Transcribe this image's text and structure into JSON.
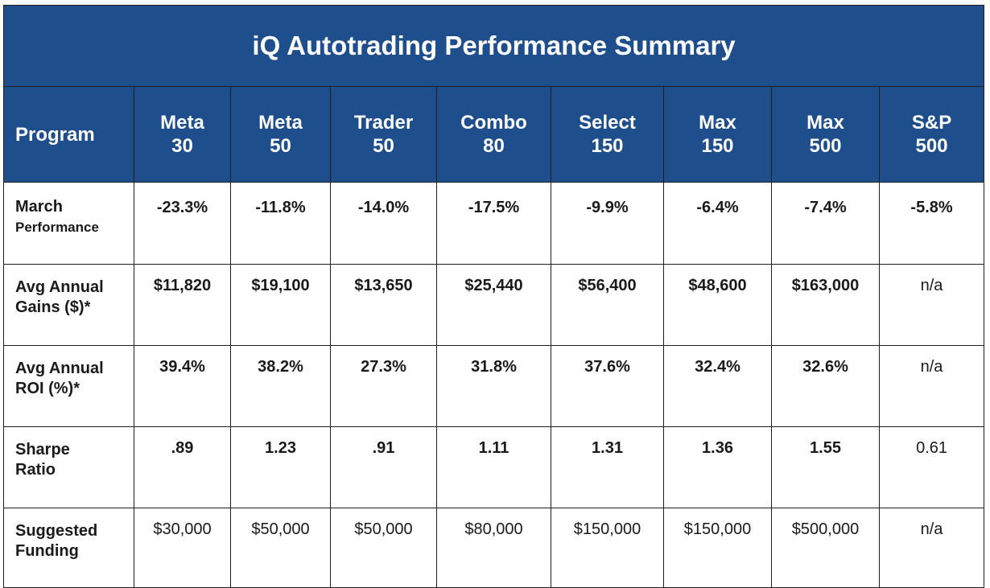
{
  "title": "iQ Autotrading Performance Summary",
  "header": {
    "program_label": "Program",
    "columns": [
      {
        "line1": "Meta",
        "line2": "30"
      },
      {
        "line1": "Meta",
        "line2": "50"
      },
      {
        "line1": "Trader",
        "line2": "50"
      },
      {
        "line1": "Combo",
        "line2": "80"
      },
      {
        "line1": "Select",
        "line2": "150"
      },
      {
        "line1": "Max",
        "line2": "150"
      },
      {
        "line1": "Max",
        "line2": "500"
      },
      {
        "line1": "S&P",
        "line2": "500"
      }
    ]
  },
  "rows": [
    {
      "label_line1": "March",
      "label_line2": "Performance",
      "values": [
        "-23.3%",
        "-11.8%",
        "-14.0%",
        "-17.5%",
        "-9.9%",
        "-6.4%",
        "-7.4%",
        "-5.8%"
      ]
    },
    {
      "label_line1": "Avg Annual",
      "label_line2": "Gains ($)*",
      "values": [
        "$11,820",
        "$19,100",
        "$13,650",
        "$25,440",
        "$56,400",
        "$48,600",
        "$163,000",
        "n/a"
      ]
    },
    {
      "label_line1": "Avg Annual",
      "label_line2": "ROI (%)*",
      "values": [
        "39.4%",
        "38.2%",
        "27.3%",
        "31.8%",
        "37.6%",
        "32.4%",
        "32.6%",
        "n/a"
      ]
    },
    {
      "label_line1": "Sharpe",
      "label_line2": "Ratio",
      "values": [
        ".89",
        "1.23",
        ".91",
        "1.11",
        "1.31",
        "1.36",
        "1.55",
        "0.61"
      ]
    },
    {
      "label_line1": "Suggested",
      "label_line2": "Funding",
      "values": [
        "$30,000",
        "$50,000",
        "$50,000",
        "$80,000",
        "$150,000",
        "$150,000",
        "$500,000",
        "n/a"
      ]
    }
  ],
  "colors": {
    "header_bg": "#1f4e8c",
    "header_text": "#ffffff",
    "border": "#1f1f1f"
  }
}
